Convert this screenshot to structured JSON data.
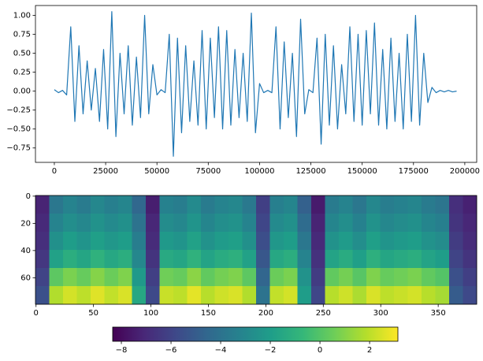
{
  "chart_data": [
    {
      "type": "line",
      "color": "#1f77b4",
      "x": [
        0,
        2000,
        4000,
        6000,
        8000,
        10000,
        12000,
        14000,
        16000,
        18000,
        20000,
        22000,
        24000,
        26000,
        28000,
        30000,
        32000,
        34000,
        36000,
        38000,
        40000,
        42000,
        44000,
        46000,
        48000,
        50000,
        52000,
        54000,
        56000,
        58000,
        60000,
        62000,
        64000,
        66000,
        68000,
        70000,
        72000,
        74000,
        76000,
        78000,
        80000,
        82000,
        84000,
        86000,
        88000,
        90000,
        92000,
        94000,
        96000,
        98000,
        100000,
        102000,
        104000,
        106000,
        108000,
        110000,
        112000,
        114000,
        116000,
        118000,
        120000,
        122000,
        124000,
        126000,
        128000,
        130000,
        132000,
        134000,
        136000,
        138000,
        140000,
        142000,
        144000,
        146000,
        148000,
        150000,
        152000,
        154000,
        156000,
        158000,
        160000,
        162000,
        164000,
        166000,
        168000,
        170000,
        172000,
        174000,
        176000,
        178000,
        180000,
        182000,
        184000,
        186000,
        188000,
        190000,
        192000,
        194000,
        196000
      ],
      "values": [
        0.02,
        -0.02,
        0.01,
        -0.05,
        0.85,
        -0.4,
        0.6,
        -0.3,
        0.4,
        -0.25,
        0.3,
        -0.4,
        0.55,
        -0.5,
        1.05,
        -0.6,
        0.5,
        -0.3,
        0.6,
        -0.45,
        0.45,
        -0.35,
        1.0,
        -0.3,
        0.35,
        -0.05,
        0.02,
        -0.02,
        0.75,
        -0.86,
        0.7,
        -0.55,
        0.6,
        -0.4,
        0.4,
        -0.45,
        0.8,
        -0.5,
        0.7,
        -0.35,
        0.85,
        -0.5,
        0.8,
        -0.45,
        0.55,
        -0.35,
        0.5,
        -0.4,
        1.03,
        -0.55,
        0.1,
        -0.02,
        0.01,
        -0.02,
        0.85,
        -0.5,
        0.65,
        -0.35,
        0.5,
        -0.6,
        0.95,
        -0.3,
        0.02,
        -0.02,
        0.7,
        -0.7,
        0.75,
        -0.45,
        0.6,
        -0.5,
        0.35,
        -0.3,
        0.85,
        -0.4,
        0.75,
        -0.45,
        0.8,
        -0.3,
        0.9,
        -0.45,
        0.55,
        -0.5,
        0.7,
        -0.4,
        0.5,
        -0.5,
        0.75,
        -0.4,
        1.0,
        -0.45,
        0.5,
        -0.15,
        0.05,
        -0.02,
        0.01,
        -0.01,
        0.01,
        -0.01,
        0.0
      ],
      "xlim": [
        -9200,
        205800
      ],
      "ylim": [
        -0.94,
        1.13
      ],
      "xticks": [
        0,
        25000,
        50000,
        75000,
        100000,
        125000,
        150000,
        175000,
        200000
      ],
      "yticks": [
        {
          "value": -0.75,
          "label": "−0.75"
        },
        {
          "value": -0.5,
          "label": "−0.50"
        },
        {
          "value": -0.25,
          "label": "−0.25"
        },
        {
          "value": 0,
          "label": "0.00"
        },
        {
          "value": 0.25,
          "label": "0.25"
        },
        {
          "value": 0.5,
          "label": "0.50"
        },
        {
          "value": 0.75,
          "label": "0.75"
        },
        {
          "value": 1,
          "label": "1.00"
        }
      ]
    },
    {
      "type": "heatmap",
      "colormap": "viridis",
      "xlim": [
        -0.5,
        383.5
      ],
      "ylim": [
        79.5,
        -0.5
      ],
      "xticks": [
        0,
        50,
        100,
        150,
        200,
        250,
        300,
        350
      ],
      "yticks": [
        0,
        20,
        40,
        60
      ],
      "zlim": [
        -8.35,
        3.14
      ],
      "colorbar_ticks": [
        {
          "value": -8,
          "label": "−8"
        },
        {
          "value": -6,
          "label": "−6"
        },
        {
          "value": -4,
          "label": "−4"
        },
        {
          "value": -2,
          "label": "−2"
        },
        0,
        2
      ],
      "z": [
        [
          -7.2,
          -3.8,
          -3.2,
          -3.6,
          -3.0,
          -3.4,
          -3.1,
          -4.5,
          -7.4,
          -3.3,
          -3.5,
          -2.9,
          -3.6,
          -3.2,
          -3.0,
          -3.7,
          -6.2,
          -3.4,
          -3.1,
          -4.8,
          -7.5,
          -3.6,
          -3.2,
          -3.8,
          -3.0,
          -3.5,
          -3.3,
          -3.1,
          -3.6,
          -3.9,
          -6.8,
          -7.3
        ],
        [
          -7.0,
          -3.2,
          -2.7,
          -3.0,
          -2.5,
          -2.9,
          -2.6,
          -4.0,
          -7.1,
          -2.8,
          -3.0,
          -2.4,
          -3.1,
          -2.7,
          -2.5,
          -3.2,
          -5.9,
          -2.9,
          -2.6,
          -4.3,
          -7.2,
          -3.1,
          -2.7,
          -3.3,
          -2.5,
          -3.0,
          -2.8,
          -2.6,
          -3.1,
          -3.4,
          -6.6,
          -7.1
        ],
        [
          -6.8,
          -2.6,
          -2.0,
          -2.4,
          -1.9,
          -2.3,
          -2.0,
          -3.5,
          -6.9,
          -2.2,
          -2.4,
          -1.8,
          -2.5,
          -2.1,
          -1.9,
          -2.6,
          -5.6,
          -2.3,
          -2.0,
          -3.8,
          -7.0,
          -2.5,
          -2.1,
          -2.7,
          -1.9,
          -2.4,
          -2.2,
          -2.0,
          -2.5,
          -2.8,
          -6.3,
          -6.9
        ],
        [
          -6.5,
          -1.8,
          -1.2,
          -1.6,
          -1.0,
          -1.5,
          -1.2,
          -3.0,
          -6.6,
          -1.4,
          -1.6,
          -1.0,
          -1.7,
          -1.3,
          -1.1,
          -1.8,
          -5.2,
          -1.5,
          -1.2,
          -3.2,
          -6.7,
          -1.7,
          -1.3,
          -1.9,
          -1.1,
          -1.6,
          -1.4,
          -1.2,
          -1.7,
          -2.0,
          -6.0,
          -6.6
        ],
        [
          -6.0,
          0.2,
          0.8,
          0.4,
          1.0,
          0.5,
          0.9,
          -2.2,
          -6.2,
          0.6,
          0.4,
          1.1,
          0.3,
          0.7,
          0.9,
          0.2,
          -4.6,
          0.5,
          0.8,
          -2.5,
          -6.3,
          0.3,
          0.7,
          0.1,
          0.9,
          0.4,
          0.6,
          0.8,
          0.3,
          0.0,
          -5.5,
          -6.2
        ],
        [
          -5.5,
          1.8,
          2.4,
          2.0,
          2.6,
          2.1,
          2.5,
          -1.5,
          -5.8,
          2.2,
          2.0,
          2.7,
          1.9,
          2.3,
          2.5,
          1.8,
          -4.0,
          2.1,
          2.4,
          -2.0,
          -5.9,
          1.9,
          2.3,
          1.7,
          2.5,
          2.0,
          2.2,
          2.4,
          1.9,
          1.6,
          -5.0,
          -5.8
        ]
      ]
    }
  ]
}
